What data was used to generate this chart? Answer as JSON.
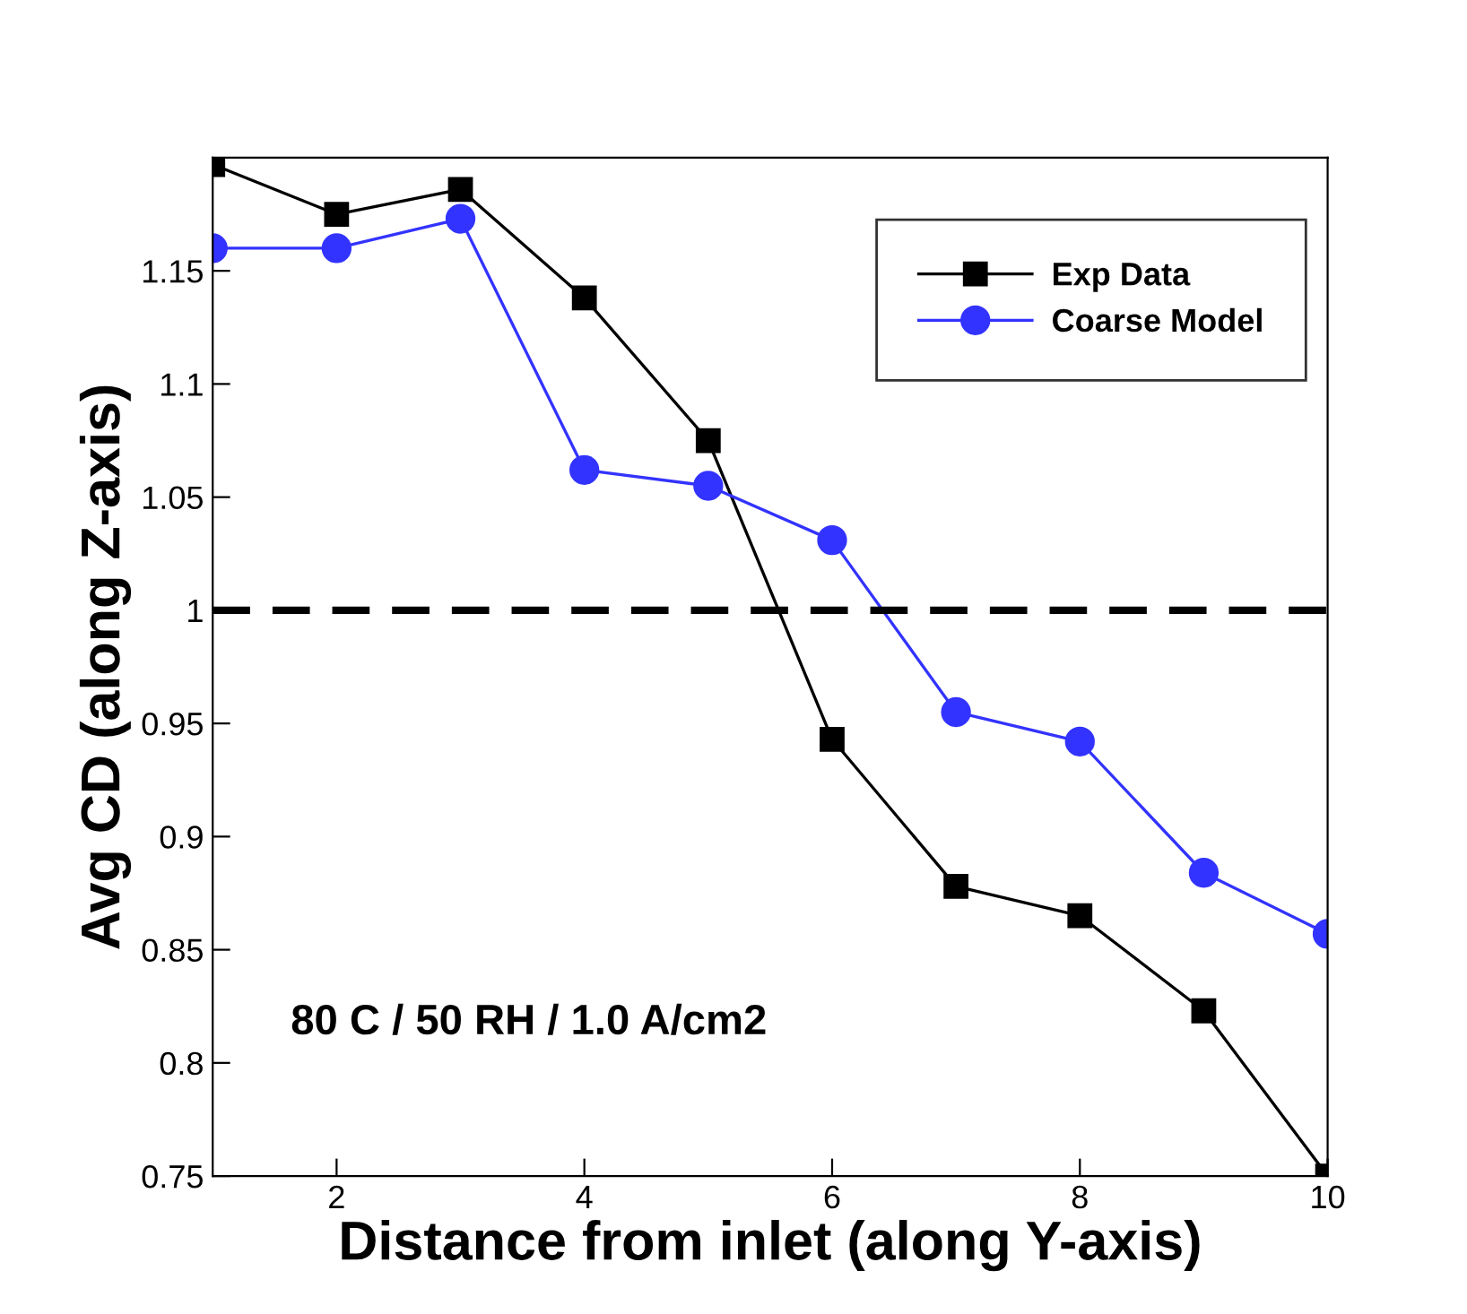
{
  "chart_data": {
    "type": "line",
    "xlabel": "Distance from inlet (along Y-axis)",
    "ylabel": "Avg CD (along Z-axis)",
    "x": [
      1,
      2,
      3,
      4,
      5,
      6,
      7,
      8,
      9,
      10
    ],
    "series": [
      {
        "name": "Exp Data",
        "color": "#000000",
        "marker": "square",
        "values": [
          1.197,
          1.175,
          1.186,
          1.138,
          1.075,
          0.943,
          0.878,
          0.865,
          0.823,
          0.75
        ]
      },
      {
        "name": "Coarse Model",
        "color": "#3333ff",
        "marker": "circle",
        "values": [
          1.16,
          1.16,
          1.173,
          1.062,
          1.055,
          1.031,
          0.955,
          0.942,
          0.884,
          0.857
        ]
      }
    ],
    "xlim": [
      1,
      10
    ],
    "xticks": [
      2,
      4,
      6,
      8,
      10
    ],
    "ylim": [
      0.75,
      1.2
    ],
    "yticks": [
      0.75,
      0.8,
      0.85,
      0.9,
      0.95,
      1,
      1.05,
      1.1,
      1.15
    ],
    "ref_lines": [
      {
        "axis": "y",
        "value": 1,
        "color": "#000000",
        "line_style": "dashed"
      }
    ],
    "annotations": [
      "80 C / 50 RH / 1.0 A/cm2"
    ],
    "legend": "top right",
    "grid": false,
    "line_style": "solid"
  }
}
